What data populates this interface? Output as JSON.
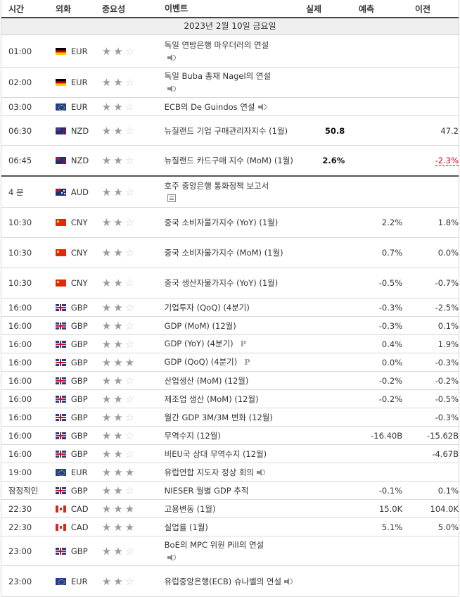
{
  "header": {
    "time": "시간",
    "currency": "외화",
    "importance": "중요성",
    "event": "이벤트",
    "actual": "실제",
    "forecast": "예측",
    "previous": "이전"
  },
  "date_label": "2023년 2월 10일 금요일",
  "icons": {
    "speaker": "speaker-icon",
    "document": "document-icon",
    "preliminary": "p-icon"
  },
  "colors": {
    "negative_highlight": "#d0021b",
    "star_on": "#9a9a9a",
    "star_off": "#cfcfcf"
  },
  "events": [
    {
      "time": "01:00",
      "currency": "EUR",
      "flag": "de",
      "stars": 2,
      "event": "독일 연방은행 마우더러의 연설",
      "icon": "speaker",
      "icon_newline": true,
      "actual": "",
      "forecast": "",
      "previous": "",
      "height": 46
    },
    {
      "time": "02:00",
      "currency": "EUR",
      "flag": "de",
      "stars": 2,
      "event": "독일 Buba 총재 Nagel의 연설",
      "icon": "speaker",
      "icon_newline": true,
      "actual": "",
      "forecast": "",
      "previous": "",
      "height": 43
    },
    {
      "time": "03:00",
      "currency": "EUR",
      "flag": "eu",
      "stars": 2,
      "event": "ECB의 De Guindos 연설",
      "icon": "speaker",
      "icon_newline": false,
      "actual": "",
      "forecast": "",
      "previous": "",
      "height": 26
    },
    {
      "time": "06:30",
      "currency": "NZD",
      "flag": "nz",
      "stars": 2,
      "event": "뉴질랜드 기업 구매관리자지수 (1월)",
      "icon": "",
      "actual": "50.8",
      "forecast": "",
      "previous": "47.2",
      "height": 42
    },
    {
      "time": "06:45",
      "currency": "NZD",
      "flag": "nz",
      "stars": 2,
      "event": "뉴질랜드 카드구매 지수 (MoM) (1월)",
      "icon": "",
      "actual": "2.6%",
      "forecast": "",
      "previous": "-2.3%",
      "previous_highlight": true,
      "height": 44,
      "thick": true
    },
    {
      "time": "4 분",
      "currency": "AUD",
      "flag": "au",
      "stars": 2,
      "event": "호주 중앙은행 통화정책 보고서",
      "icon": "document",
      "icon_newline": true,
      "actual": "",
      "forecast": "",
      "previous": "",
      "height": 44
    },
    {
      "time": "10:30",
      "currency": "CNY",
      "flag": "cn",
      "stars": 2,
      "event": "중국 소비자물가지수 (YoY) (1월)",
      "icon": "",
      "actual": "",
      "forecast": "2.2%",
      "previous": "1.8%",
      "height": 43
    },
    {
      "time": "10:30",
      "currency": "CNY",
      "flag": "cn",
      "stars": 2,
      "event": "중국 소비자물가지수 (MoM) (1월)",
      "icon": "",
      "actual": "",
      "forecast": "0.7%",
      "previous": "0.0%",
      "height": 43
    },
    {
      "time": "10:30",
      "currency": "CNY",
      "flag": "cn",
      "stars": 2,
      "event": "중국 생산자물가지수 (YoY) (1월)",
      "icon": "",
      "actual": "",
      "forecast": "-0.5%",
      "previous": "-0.7%",
      "height": 43
    },
    {
      "time": "16:00",
      "currency": "GBP",
      "flag": "gb",
      "stars": 2,
      "event": "기업투자 (QoQ) (4분기)",
      "icon": "",
      "actual": "",
      "forecast": "-0.3%",
      "previous": "-2.5%",
      "height": 26
    },
    {
      "time": "16:00",
      "currency": "GBP",
      "flag": "gb",
      "stars": 2,
      "event": "GDP (MoM) (12월)",
      "icon": "",
      "actual": "",
      "forecast": "-0.3%",
      "previous": "0.1%",
      "height": 26
    },
    {
      "time": "16:00",
      "currency": "GBP",
      "flag": "gb",
      "stars": 2,
      "event": "GDP (YoY) (4분기)",
      "icon": "p",
      "icon_newline": false,
      "actual": "",
      "forecast": "0.4%",
      "previous": "1.9%",
      "height": 26
    },
    {
      "time": "16:00",
      "currency": "GBP",
      "flag": "gb",
      "stars": 3,
      "event": "GDP (QoQ) (4분기)",
      "icon": "p",
      "icon_newline": false,
      "actual": "",
      "forecast": "0.0%",
      "previous": "-0.3%",
      "height": 26
    },
    {
      "time": "16:00",
      "currency": "GBP",
      "flag": "gb",
      "stars": 2,
      "event": "산업생산 (MoM) (12월)",
      "icon": "",
      "actual": "",
      "forecast": "-0.2%",
      "previous": "-0.2%",
      "height": 26
    },
    {
      "time": "16:00",
      "currency": "GBP",
      "flag": "gb",
      "stars": 2,
      "event": "제조업 생산 (MoM) (12월)",
      "icon": "",
      "actual": "",
      "forecast": "-0.2%",
      "previous": "-0.5%",
      "height": 26
    },
    {
      "time": "16:00",
      "currency": "GBP",
      "flag": "gb",
      "stars": 2,
      "event": "월간 GDP 3M/3M 변화 (12월)",
      "icon": "",
      "actual": "",
      "forecast": "",
      "previous": "-0.3%",
      "height": 26
    },
    {
      "time": "16:00",
      "currency": "GBP",
      "flag": "gb",
      "stars": 2,
      "event": "무역수지 (12월)",
      "icon": "",
      "actual": "",
      "forecast": "-16.40B",
      "previous": "-15.62B",
      "height": 26
    },
    {
      "time": "16:00",
      "currency": "GBP",
      "flag": "gb",
      "stars": 2,
      "event": "비EU국 상대 무역수지 (12월)",
      "icon": "",
      "actual": "",
      "forecast": "",
      "previous": "-4.67B",
      "height": 26
    },
    {
      "time": "19:00",
      "currency": "EUR",
      "flag": "eu",
      "stars": 3,
      "event": "유럽연합 지도자 정상 회의",
      "icon": "speaker",
      "icon_newline": false,
      "actual": "",
      "forecast": "",
      "previous": "",
      "height": 26
    },
    {
      "time": "잠정적인",
      "currency": "GBP",
      "flag": "gb",
      "stars": 2,
      "event": "NIESER 월별 GDP 추적",
      "icon": "",
      "actual": "",
      "forecast": "-0.1%",
      "previous": "0.1%",
      "height": 26
    },
    {
      "time": "22:30",
      "currency": "CAD",
      "flag": "ca",
      "stars": 3,
      "event": "고용변동 (1월)",
      "icon": "",
      "actual": "",
      "forecast": "15.0K",
      "previous": "104.0K",
      "height": 26
    },
    {
      "time": "22:30",
      "currency": "CAD",
      "flag": "ca",
      "stars": 3,
      "event": "실업률 (1월)",
      "icon": "",
      "actual": "",
      "forecast": "5.1%",
      "previous": "5.0%",
      "height": 26
    },
    {
      "time": "23:00",
      "currency": "GBP",
      "flag": "gb",
      "stars": 2,
      "event": "BoE의 MPC 위원 Pill의 연설",
      "icon": "speaker",
      "icon_newline": true,
      "actual": "",
      "forecast": "",
      "previous": "",
      "height": 42
    },
    {
      "time": "23:00",
      "currency": "EUR",
      "flag": "eu",
      "stars": 2,
      "event": "유럽중앙은행(ECB) 슈나벨의 연설",
      "icon": "speaker",
      "icon_newline": false,
      "actual": "",
      "forecast": "",
      "previous": "",
      "height": 44
    }
  ]
}
